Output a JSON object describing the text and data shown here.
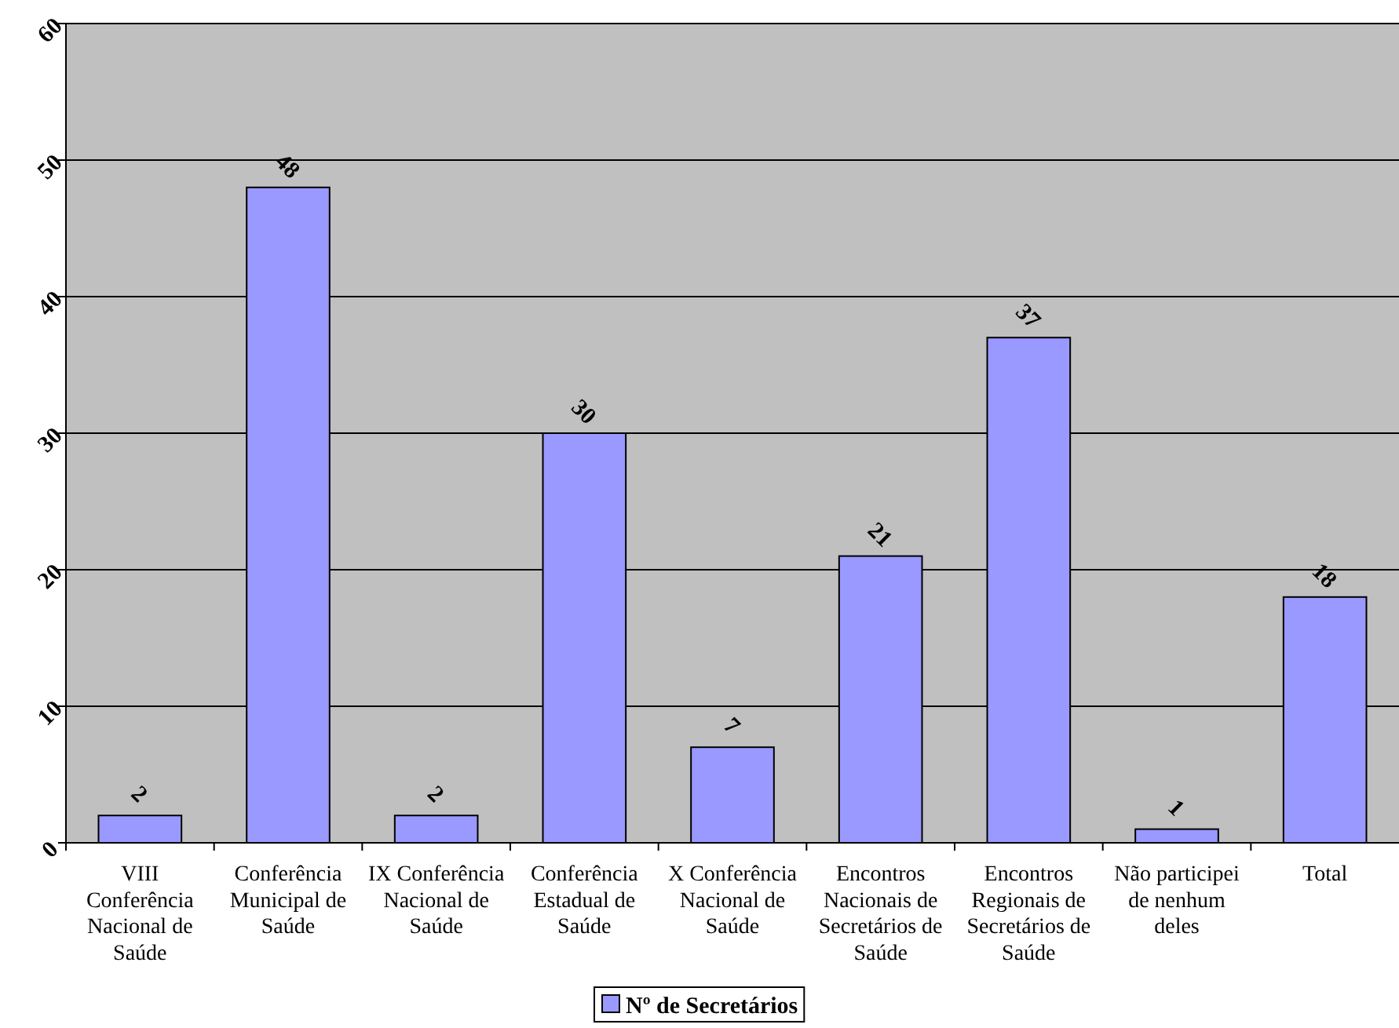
{
  "chart_data": {
    "type": "bar",
    "categories": [
      "VIII Conferência Nacional de Saúde",
      "Conferência Municipal de Saúde",
      "IX Conferência Nacional de Saúde",
      "Conferência Estadual de Saúde",
      "X Conferência Nacional de Saúde",
      "Encontros Nacionais de Secretários de Saúde",
      "Encontros Regionais de Secretários de Saúde",
      "Não participei de nenhum deles",
      "Total"
    ],
    "series": [
      {
        "name": "Nº de Secretários",
        "color": "#9999ff",
        "values": [
          2,
          48,
          2,
          30,
          7,
          21,
          37,
          1,
          18
        ]
      }
    ],
    "ylim": [
      0,
      60
    ],
    "yticks": [
      0,
      10,
      20,
      30,
      40,
      50,
      60
    ],
    "grid": "y",
    "legend": "bottom",
    "data_labels": true
  }
}
